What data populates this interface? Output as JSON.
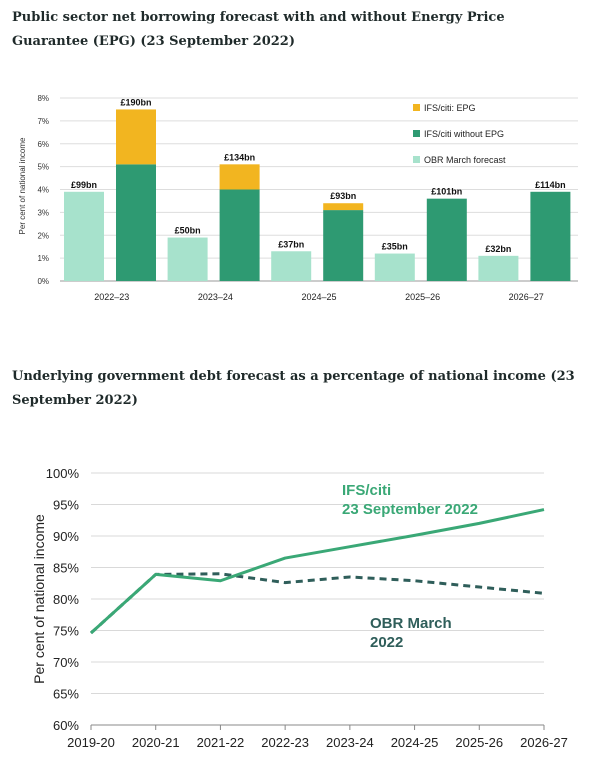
{
  "headings": {
    "borrowing": "Public sector net borrowing forecast with and without Energy Price Guarantee (EPG) (23 September 2022)",
    "debt": "Underlying government debt forecast as a percentage of national income (23 September 2022)"
  },
  "chart_data": [
    {
      "type": "bar",
      "title": "",
      "ylabel": "Per cent of national income",
      "xlabel": "",
      "ylim": [
        0,
        8
      ],
      "yticks": [
        "0%",
        "1%",
        "2%",
        "3%",
        "4%",
        "5%",
        "6%",
        "7%",
        "8%"
      ],
      "grid": true,
      "legend_position": "top-right",
      "categories": [
        "2022–23",
        "2023–24",
        "2024–25",
        "2025–26",
        "2026–27"
      ],
      "colors": {
        "obr": "#a7e2cc",
        "without_epg": "#2e9a72",
        "epg": "#f2b520"
      },
      "legend": [
        "IFS/citi: EPG",
        "IFS/citi without EPG",
        "OBR March forecast"
      ],
      "series": [
        {
          "name": "OBR March forecast",
          "values": [
            3.9,
            1.9,
            1.3,
            1.2,
            1.1
          ],
          "labels": [
            "£99bn",
            "£50bn",
            "£37bn",
            "£35bn",
            "£32bn"
          ]
        },
        {
          "name": "IFS/citi without EPG",
          "values": [
            5.1,
            4.0,
            3.1,
            3.6,
            3.9
          ]
        },
        {
          "name": "IFS/citi: EPG",
          "values": [
            2.4,
            1.1,
            0.3,
            0,
            0
          ]
        }
      ],
      "ifs_total_labels": [
        "£190bn",
        "£134bn",
        "£93bn",
        "£101bn",
        "£114bn"
      ]
    },
    {
      "type": "line",
      "title": "",
      "ylabel": "Per cent of national income",
      "xlabel": "",
      "ylim": [
        60,
        100
      ],
      "yticks": [
        "60%",
        "65%",
        "70%",
        "75%",
        "80%",
        "85%",
        "90%",
        "95%",
        "100%"
      ],
      "grid": true,
      "x": [
        "2019-20",
        "2020-21",
        "2021-22",
        "2022-23",
        "2023-24",
        "2024-25",
        "2025-26",
        "2026-27"
      ],
      "colors": {
        "ifs": "#3aa876",
        "obr": "#2f5e5a"
      },
      "series": [
        {
          "name": "IFS/citi 23 September 2022",
          "label_lines": [
            "IFS/citi",
            "23 September 2022"
          ],
          "style": "solid",
          "values": [
            74.6,
            83.9,
            82.9,
            86.5,
            88.3,
            90.1,
            92.0,
            94.2
          ]
        },
        {
          "name": "OBR March 2022",
          "label_lines": [
            "OBR March",
            "2022"
          ],
          "style": "dashed",
          "values": [
            74.6,
            83.9,
            84.0,
            82.6,
            83.5,
            82.9,
            81.9,
            80.9
          ]
        }
      ]
    }
  ]
}
